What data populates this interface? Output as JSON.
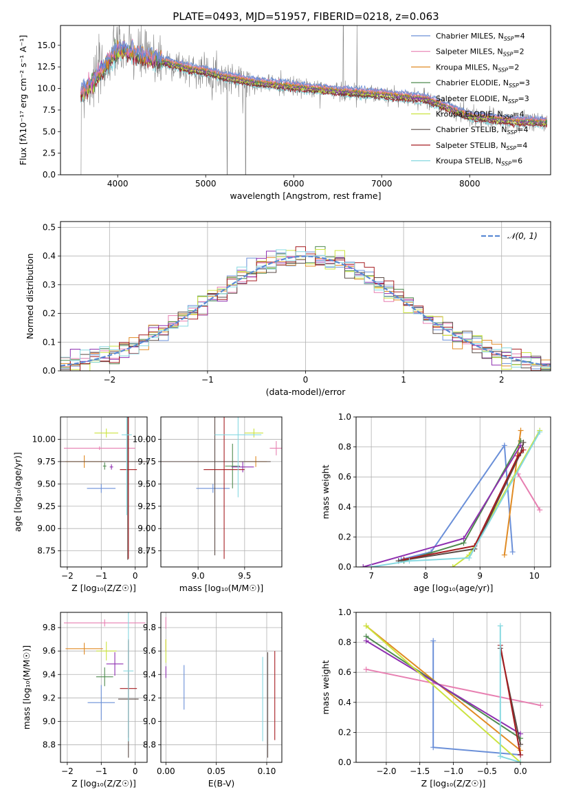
{
  "title": "PLATE=0493, MJD=51957, FIBERID=0218, z=0.063",
  "colors": {
    "chabrier_miles": "#6a8fd8",
    "salpeter_miles": "#e77fb1",
    "kroupa_miles": "#e08a23",
    "chabrier_elodie": "#4e8a4e",
    "salpeter_elodie": "#8e2fb0",
    "kroupa_elodie": "#cbe33f",
    "chabrier_stelib": "#5a4a45",
    "salpeter_stelib": "#a51c20",
    "kroupa_stelib": "#86d8e0",
    "data": "#808080"
  },
  "legend_series": [
    {
      "label": "Chabrier MILES, N",
      "sub": "SSP",
      "tail": "=4",
      "color": "#6a8fd8"
    },
    {
      "label": "Salpeter MILES, N",
      "sub": "SSP",
      "tail": "=2",
      "color": "#e77fb1"
    },
    {
      "label": "Kroupa MILES, N",
      "sub": "SSP",
      "tail": "=2",
      "color": "#e08a23"
    },
    {
      "label": "Chabrier ELODIE, N",
      "sub": "SSP",
      "tail": "=3",
      "color": "#4e8a4e"
    },
    {
      "label": "Salpeter ELODIE, N",
      "sub": "SSP",
      "tail": "=3",
      "color": "#8e2fb0"
    },
    {
      "label": "Kroupa ELODIE, N",
      "sub": "SSP",
      "tail": "=4",
      "color": "#cbe33f"
    },
    {
      "label": "Chabrier STELIB, N",
      "sub": "SSP",
      "tail": "=4",
      "color": "#5a4a45"
    },
    {
      "label": "Salpeter STELIB, N",
      "sub": "SSP",
      "tail": "=4",
      "color": "#a51c20"
    },
    {
      "label": "Kroupa STELIB, N",
      "sub": "SSP",
      "tail": "=6",
      "color": "#86d8e0"
    }
  ],
  "chart_data": [
    {
      "type": "line",
      "panel": "spectrum",
      "xlabel": "wavelength [Angstrom, rest frame]",
      "ylabel": "Flux [fλ10⁻¹⁷ erg cm⁻² s⁻¹ A⁻¹]",
      "xlim": [
        3350,
        8920
      ],
      "ylim": [
        0,
        17.3
      ],
      "xticks": [
        4000,
        5000,
        6000,
        7000,
        8000
      ],
      "yticks": [
        0.0,
        2.5,
        5.0,
        7.5,
        10.0,
        12.5,
        15.0
      ],
      "grid": false,
      "legend_loc": "upper right",
      "continuum_model": {
        "x": [
          3580,
          3700,
          3850,
          3950,
          4000,
          4100,
          4300,
          4500,
          4800,
          5000,
          5200,
          5500,
          6000,
          6500,
          7000,
          7500,
          8000,
          8500,
          8880
        ],
        "y": [
          9.5,
          10.5,
          12.5,
          13.8,
          14.5,
          14.3,
          13.6,
          13.2,
          12.3,
          12.0,
          11.4,
          10.8,
          10.2,
          9.7,
          9.3,
          8.8,
          6.8,
          6.2,
          6.1
        ]
      }
    },
    {
      "type": "histogram",
      "panel": "residuals",
      "xlabel": "(data-model)/error",
      "ylabel": "Normed distribution",
      "xlim": [
        -2.5,
        2.5
      ],
      "ylim": [
        0,
        0.52
      ],
      "xticks": [
        -2,
        -1,
        0,
        1,
        2
      ],
      "yticks": [
        0.0,
        0.1,
        0.2,
        0.3,
        0.4,
        0.5
      ],
      "grid": true,
      "legend_loc": "upper right",
      "legend_label": "𝒩(0, 1)",
      "bin_width": 0.1
    },
    {
      "type": "errorbar",
      "panel": "age_vs_Z",
      "xlabel": "Z [log₁₀(Z/Z☉)]",
      "ylabel": "age  [log₁₀(age/yr)]",
      "xlim": [
        -2.2,
        0.35
      ],
      "ylim": [
        8.57,
        10.25
      ],
      "xticks": [
        -2,
        -1,
        0
      ],
      "yticks": [
        8.75,
        9.0,
        9.25,
        9.5,
        9.75,
        10.0
      ],
      "grid": true,
      "points": [
        {
          "series": "Chabrier MILES",
          "x": -1.0,
          "xerr": 0.42,
          "y": 9.45,
          "yerr": 0.05
        },
        {
          "series": "Salpeter MILES",
          "x": -1.05,
          "xerr": 1.05,
          "y": 9.9,
          "yerr": 0.02
        },
        {
          "series": "Kroupa MILES",
          "x": -1.5,
          "xerr": 0.55,
          "y": 9.75,
          "yerr": 0.07
        },
        {
          "series": "Chabrier ELODIE",
          "x": -0.9,
          "xerr": 0.05,
          "y": 9.7,
          "yerr": 0.04
        },
        {
          "series": "Salpeter ELODIE",
          "x": -0.7,
          "xerr": 0.05,
          "y": 9.69,
          "yerr": 0.03
        },
        {
          "series": "Kroupa ELODIE",
          "x": -0.85,
          "xerr": 0.35,
          "y": 10.07,
          "yerr": 0.05
        },
        {
          "series": "Chabrier STELIB",
          "x": -0.22,
          "xerr": 2.0,
          "y": 9.75,
          "yerr": 1.1
        },
        {
          "series": "Salpeter STELIB",
          "x": -0.2,
          "xerr": 0.25,
          "y": 9.66,
          "yerr": 1.0
        },
        {
          "series": "Kroupa STELIB",
          "x": -0.25,
          "xerr": 0.15,
          "y": 10.05,
          "yerr": 0.9
        }
      ]
    },
    {
      "type": "errorbar",
      "panel": "age_vs_mass",
      "xlabel": "mass [log₁₀(M/M☉)]",
      "ylabel": "",
      "xlim": [
        8.6,
        9.9
      ],
      "ylim": [
        8.57,
        10.25
      ],
      "xticks": [
        9.0,
        9.5
      ],
      "yticks": [
        8.75,
        9.0,
        9.25,
        9.5,
        9.75,
        10.0
      ],
      "grid": true,
      "points": [
        {
          "series": "Chabrier MILES",
          "x": 9.16,
          "xerr": 0.18,
          "y": 9.45,
          "yerr": 0.05
        },
        {
          "series": "Salpeter MILES",
          "x": 9.84,
          "xerr": 0.07,
          "y": 9.9,
          "yerr": 0.08
        },
        {
          "series": "Kroupa MILES",
          "x": 9.62,
          "xerr": 0.12,
          "y": 9.75,
          "yerr": 0.06
        },
        {
          "series": "Chabrier ELODIE",
          "x": 9.37,
          "xerr": 0.08,
          "y": 9.7,
          "yerr": 0.25
        },
        {
          "series": "Salpeter ELODIE",
          "x": 9.48,
          "xerr": 0.12,
          "y": 9.69,
          "yerr": 0.06
        },
        {
          "series": "Kroupa ELODIE",
          "x": 9.6,
          "xerr": 0.1,
          "y": 10.07,
          "yerr": 0.05
        },
        {
          "series": "Chabrier STELIB",
          "x": 9.18,
          "xerr": 0.6,
          "y": 9.75,
          "yerr": 1.05
        },
        {
          "series": "Salpeter STELIB",
          "x": 9.28,
          "xerr": 0.22,
          "y": 9.66,
          "yerr": 1.0
        },
        {
          "series": "Kroupa STELIB",
          "x": 9.43,
          "xerr": 0.25,
          "y": 10.05,
          "yerr": 0.7
        }
      ]
    },
    {
      "type": "line",
      "panel": "mass_weight_vs_age",
      "xlabel": "age  [log₁₀(age/yr)]",
      "ylabel": "mass weight",
      "xlim": [
        6.72,
        10.3
      ],
      "ylim": [
        0,
        1.0
      ],
      "xticks": [
        7,
        8,
        9,
        10
      ],
      "yticks": [
        0.0,
        0.2,
        0.4,
        0.6,
        0.8,
        1.0
      ],
      "grid": true,
      "series": [
        {
          "name": "Chabrier MILES",
          "points": [
            [
              7.55,
              0.05
            ],
            [
              8.1,
              0.1
            ],
            [
              9.45,
              0.81
            ],
            [
              9.6,
              0.1
            ]
          ]
        },
        {
          "name": "Salpeter MILES",
          "points": [
            [
              9.7,
              0.62
            ],
            [
              10.1,
              0.38
            ]
          ]
        },
        {
          "name": "Kroupa MILES",
          "points": [
            [
              9.45,
              0.08
            ],
            [
              9.75,
              0.91
            ]
          ]
        },
        {
          "name": "Chabrier ELODIE",
          "points": [
            [
              7.6,
              0.04
            ],
            [
              8.7,
              0.16
            ],
            [
              9.75,
              0.84
            ]
          ]
        },
        {
          "name": "Salpeter ELODIE",
          "points": [
            [
              6.85,
              0.0
            ],
            [
              8.7,
              0.19
            ],
            [
              9.75,
              0.81
            ]
          ]
        },
        {
          "name": "Kroupa ELODIE",
          "points": [
            [
              8.5,
              0.0
            ],
            [
              8.8,
              0.08
            ],
            [
              10.1,
              0.91
            ]
          ]
        },
        {
          "name": "Chabrier STELIB",
          "points": [
            [
              7.5,
              0.04
            ],
            [
              8.9,
              0.12
            ],
            [
              9.75,
              0.76
            ],
            [
              9.8,
              0.83
            ]
          ]
        },
        {
          "name": "Salpeter STELIB",
          "points": [
            [
              7.6,
              0.05
            ],
            [
              8.9,
              0.14
            ],
            [
              9.7,
              0.74
            ],
            [
              9.8,
              0.78
            ]
          ]
        },
        {
          "name": "Kroupa STELIB",
          "points": [
            [
              7.0,
              0.0
            ],
            [
              7.7,
              0.04
            ],
            [
              8.8,
              0.06
            ],
            [
              10.1,
              0.9
            ]
          ]
        }
      ]
    },
    {
      "type": "errorbar",
      "panel": "mass_vs_Z",
      "xlabel": "Z [log₁₀(Z/Z☉)]",
      "ylabel": "mass [log₁₀(M/M☉)]",
      "xlim": [
        -2.2,
        0.35
      ],
      "ylim": [
        8.65,
        9.93
      ],
      "xticks": [
        -2,
        -1,
        0
      ],
      "yticks": [
        8.8,
        9.0,
        9.2,
        9.4,
        9.6,
        9.8
      ],
      "grid": true,
      "points": [
        {
          "series": "Chabrier MILES",
          "x": -1.0,
          "xerr": 0.4,
          "y": 9.16,
          "yerr": 0.15
        },
        {
          "series": "Salpeter MILES",
          "x": -0.9,
          "xerr": 1.2,
          "y": 9.84,
          "yerr": 0.03
        },
        {
          "series": "Kroupa MILES",
          "x": -1.5,
          "xerr": 0.55,
          "y": 9.62,
          "yerr": 0.05
        },
        {
          "series": "Chabrier ELODIE",
          "x": -0.9,
          "xerr": 0.25,
          "y": 9.38,
          "yerr": 0.08
        },
        {
          "series": "Salpeter ELODIE",
          "x": -0.6,
          "xerr": 0.25,
          "y": 9.49,
          "yerr": 0.1
        },
        {
          "series": "Kroupa ELODIE",
          "x": -0.85,
          "xerr": 0.3,
          "y": 9.6,
          "yerr": 0.08
        },
        {
          "series": "Chabrier STELIB",
          "x": -0.2,
          "xerr": 0.3,
          "y": 9.19,
          "yerr": 0.5
        },
        {
          "series": "Salpeter STELIB",
          "x": -0.2,
          "xerr": 0.25,
          "y": 9.28,
          "yerr": 0.42
        },
        {
          "series": "Kroupa STELIB",
          "x": -0.2,
          "xerr": 0.15,
          "y": 9.43,
          "yerr": 0.6
        }
      ]
    },
    {
      "type": "errorbar",
      "panel": "mass_vs_ebv",
      "xlabel": "E(B-V)",
      "ylabel": "",
      "xlim": [
        -0.005,
        0.115
      ],
      "ylim": [
        8.65,
        9.93
      ],
      "xticks": [
        0.0,
        0.05,
        0.1
      ],
      "yticks": [
        8.8,
        9.0,
        9.2,
        9.4,
        9.6,
        9.8
      ],
      "grid": true,
      "points": [
        {
          "series": "Chabrier MILES",
          "x": 0.018,
          "xerr": 0.0,
          "y": 9.29,
          "yerr": 0.19
        },
        {
          "series": "Salpeter MILES",
          "x": 0.0,
          "xerr": 0.0,
          "y": 9.84,
          "yerr": 0.05
        },
        {
          "series": "Kroupa MILES",
          "x": 0.0,
          "xerr": 0.0,
          "y": 9.65,
          "yerr": 0.05
        },
        {
          "series": "Salpeter ELODIE",
          "x": 0.0,
          "xerr": 0.0,
          "y": 9.42,
          "yerr": 0.05
        },
        {
          "series": "Kroupa ELODIE",
          "x": 0.0,
          "xerr": 0.0,
          "y": 9.6,
          "yerr": 0.1
        },
        {
          "series": "Chabrier STELIB",
          "x": 0.101,
          "xerr": 0.0,
          "y": 9.14,
          "yerr": 0.45
        },
        {
          "series": "Salpeter STELIB",
          "x": 0.108,
          "xerr": 0.0,
          "y": 9.22,
          "yerr": 0.38
        },
        {
          "series": "Kroupa STELIB",
          "x": 0.096,
          "xerr": 0.0,
          "y": 9.19,
          "yerr": 0.36
        }
      ]
    },
    {
      "type": "line",
      "panel": "mass_weight_vs_Z",
      "xlabel": "Z [log₁₀(Z/Z☉)]",
      "ylabel": "mass weight",
      "xlim": [
        -2.45,
        0.45
      ],
      "ylim": [
        0,
        1.0
      ],
      "xticks": [
        -2.0,
        -1.5,
        -1.0,
        -0.5,
        0.0
      ],
      "yticks": [
        0.0,
        0.2,
        0.4,
        0.6,
        0.8,
        1.0
      ],
      "grid": true,
      "series": [
        {
          "name": "Chabrier MILES",
          "points": [
            [
              -1.3,
              0.81
            ],
            [
              -1.3,
              0.1
            ],
            [
              0.0,
              0.05
            ]
          ]
        },
        {
          "name": "Salpeter MILES",
          "points": [
            [
              -2.3,
              0.62
            ],
            [
              0.3,
              0.38
            ]
          ]
        },
        {
          "name": "Kroupa MILES",
          "points": [
            [
              -2.3,
              0.91
            ],
            [
              0.0,
              0.08
            ]
          ]
        },
        {
          "name": "Chabrier ELODIE",
          "points": [
            [
              -2.3,
              0.84
            ],
            [
              0.0,
              0.16
            ]
          ]
        },
        {
          "name": "Salpeter ELODIE",
          "points": [
            [
              -2.3,
              0.81
            ],
            [
              0.0,
              0.19
            ]
          ]
        },
        {
          "name": "Kroupa ELODIE",
          "points": [
            [
              -2.3,
              0.91
            ],
            [
              0.0,
              0.0
            ]
          ]
        },
        {
          "name": "Chabrier STELIB",
          "points": [
            [
              -0.3,
              0.76
            ],
            [
              0.0,
              0.12
            ]
          ]
        },
        {
          "name": "Salpeter STELIB",
          "points": [
            [
              -0.3,
              0.78
            ],
            [
              0.0,
              0.05
            ]
          ]
        },
        {
          "name": "Kroupa STELIB",
          "points": [
            [
              -0.3,
              0.91
            ],
            [
              -0.3,
              0.04
            ],
            [
              0.0,
              0.0
            ]
          ]
        }
      ]
    }
  ]
}
